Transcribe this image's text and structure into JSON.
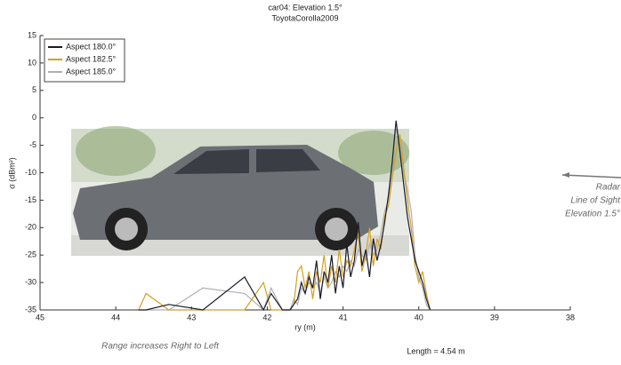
{
  "chart_data": {
    "type": "line",
    "title": "car04:  Elevation 1.5°",
    "subtitle": "ToyotaCorolla2009",
    "xlabel": "ry (m)",
    "ylabel": "σ (dBm²)",
    "xlim": [
      45,
      38
    ],
    "ylim": [
      -35,
      15
    ],
    "xticks": [
      45,
      44,
      43,
      42,
      41,
      40,
      39,
      38
    ],
    "yticks": [
      -35,
      -30,
      -25,
      -20,
      -15,
      -10,
      -5,
      0,
      5,
      10,
      15
    ],
    "x": [
      39.85,
      39.9,
      39.95,
      40.0,
      40.05,
      40.1,
      40.15,
      40.2,
      40.25,
      40.3,
      40.35,
      40.4,
      40.45,
      40.5,
      40.55,
      40.6,
      40.65,
      40.7,
      40.75,
      40.8,
      40.85,
      40.9,
      40.95,
      41.0,
      41.05,
      41.1,
      41.15,
      41.2,
      41.25,
      41.3,
      41.35,
      41.4,
      41.45,
      41.5,
      41.55,
      41.6,
      41.65,
      41.7,
      41.8,
      41.95,
      42.05,
      42.3,
      42.85,
      43.3,
      43.6,
      43.7
    ],
    "series": [
      {
        "name": "Aspect 185.0°",
        "color": "#b0b0b0",
        "values": [
          -35,
          -34,
          -31,
          -29,
          -25,
          -17,
          -13,
          -10,
          -4,
          -2,
          -9,
          -15,
          -17,
          -21,
          -24,
          -25,
          -23,
          -26,
          -25,
          -24,
          -27,
          -26,
          -28,
          -27,
          -29,
          -28,
          -30,
          -31,
          -29,
          -32,
          -30,
          -31,
          -30,
          -32,
          -31,
          -34,
          -33,
          -35,
          -35,
          -31,
          -35,
          -32,
          -31,
          -35,
          -35,
          -35
        ]
      },
      {
        "name": "Aspect 182.5°",
        "color": "#d4a020",
        "values": [
          -35,
          -32,
          -28,
          -30,
          -27,
          -20,
          -15,
          -9,
          -3,
          -6,
          -11,
          -16,
          -18,
          -24,
          -22,
          -27,
          -20,
          -25,
          -28,
          -21,
          -24,
          -27,
          -26,
          -29,
          -24,
          -30,
          -27,
          -31,
          -25,
          -30,
          -28,
          -33,
          -28,
          -31,
          -27,
          -28,
          -34,
          -35,
          -35,
          -35,
          -30,
          -35,
          -35,
          -35,
          -32,
          -35
        ]
      },
      {
        "name": "Aspect 180.0°",
        "color": "#1a1a2a",
        "values": [
          -35,
          -33,
          -30,
          -28,
          -26,
          -22,
          -18,
          -12,
          -6,
          -0.5,
          -8,
          -14,
          -19,
          -23,
          -26,
          -22,
          -29,
          -24,
          -27,
          -19,
          -26,
          -29,
          -23,
          -31,
          -27,
          -32,
          -25,
          -30,
          -28,
          -33,
          -26,
          -31,
          -29,
          -32,
          -30,
          -33,
          -34,
          -35,
          -35,
          -32,
          -35,
          -29,
          -35,
          -34,
          -35,
          -35
        ]
      }
    ],
    "legend_order": [
      2,
      1,
      0
    ],
    "annotations": [
      "Radar",
      "Line of Sight",
      "Elevation 1.5°",
      "Range increases Right to Left",
      "Length = 4.54 m"
    ]
  }
}
